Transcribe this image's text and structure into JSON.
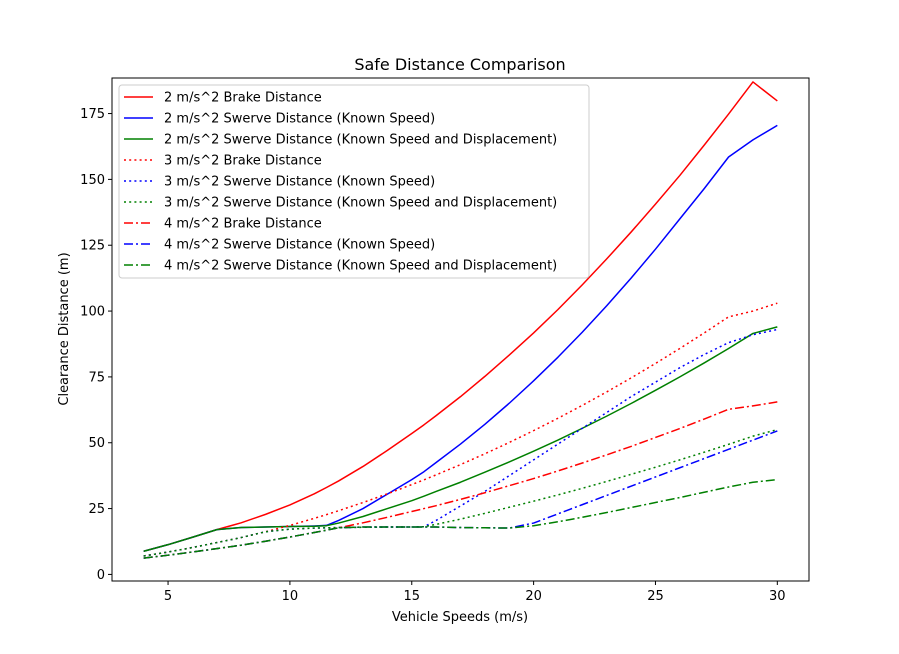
{
  "chart_data": {
    "type": "line",
    "title": "Safe Distance Comparison",
    "xlabel": "Vehicle Speeds (m/s)",
    "ylabel": "Clearance Distance (m)",
    "xlim": [
      2.7,
      31.3
    ],
    "ylim": [
      -2.5,
      188.5
    ],
    "x_ticks": [
      5,
      10,
      15,
      20,
      25,
      30
    ],
    "y_ticks": [
      0,
      25,
      50,
      75,
      100,
      125,
      150,
      175
    ],
    "grid": false,
    "legend_position": "top-left",
    "x": [
      4,
      5,
      6,
      7,
      7.7,
      8,
      9,
      10,
      11,
      11.5,
      12,
      13,
      14,
      15,
      15.5,
      16,
      17,
      18,
      19,
      20,
      21,
      22,
      23,
      24,
      25,
      26,
      27,
      28,
      29,
      30
    ],
    "series": [
      {
        "name": "2 m/s^2 Brake Distance",
        "color": "#ff0000",
        "style": "solid",
        "values": [
          8.8,
          11.3,
          14.1,
          17.0,
          18.8,
          19.6,
          22.8,
          26.4,
          30.6,
          33.0,
          35.5,
          41.0,
          47.1,
          53.5,
          56.8,
          60.3,
          67.5,
          75.2,
          83.3,
          91.7,
          100.6,
          110.0,
          119.8,
          130.0,
          140.6,
          151.5,
          163.0,
          174.8,
          187.0,
          179.8
        ]
      },
      {
        "name": "2 m/s^2 Swerve Distance (Known Speed)",
        "color": "#0000ff",
        "style": "solid",
        "values": [
          8.8,
          11.3,
          14.1,
          17.0,
          17.6,
          17.8,
          18.0,
          18.2,
          18.4,
          18.6,
          20.5,
          25.0,
          30.5,
          36.0,
          39.0,
          42.5,
          49.5,
          57.0,
          65.0,
          73.5,
          82.5,
          92.0,
          102.0,
          112.5,
          123.5,
          135.0,
          146.5,
          158.5,
          165.0,
          170.5
        ]
      },
      {
        "name": "2 m/s^2 Swerve Distance (Known Speed and Displacement)",
        "color": "#008000",
        "style": "solid",
        "values": [
          8.8,
          11.3,
          14.1,
          17.0,
          17.6,
          17.8,
          18.0,
          18.2,
          18.3,
          18.5,
          19.5,
          22.0,
          25.0,
          28.0,
          29.7,
          31.5,
          35.0,
          38.8,
          42.7,
          46.8,
          51.0,
          55.5,
          60.1,
          64.9,
          69.9,
          75.0,
          80.3,
          85.8,
          91.5,
          94.0
        ]
      },
      {
        "name": "3 m/s^2 Brake Distance",
        "color": "#ff0000",
        "style": "dotted",
        "values": [
          7.0,
          8.5,
          10.2,
          12.1,
          13.4,
          14.0,
          16.2,
          18.6,
          21.3,
          22.7,
          24.2,
          27.3,
          30.6,
          34.1,
          35.9,
          37.8,
          41.7,
          45.8,
          50.1,
          54.6,
          59.3,
          64.2,
          69.3,
          74.6,
          80.1,
          85.8,
          91.7,
          97.8,
          100.0,
          103.0
        ]
      },
      {
        "name": "3 m/s^2 Swerve Distance (Known Speed)",
        "color": "#0000ff",
        "style": "dotted",
        "values": [
          7.0,
          8.5,
          10.2,
          12.1,
          13.4,
          14.0,
          16.2,
          17.2,
          17.6,
          17.7,
          17.8,
          17.9,
          18.0,
          18.0,
          18.1,
          20.5,
          26.0,
          31.5,
          37.5,
          43.5,
          49.5,
          55.5,
          61.5,
          67.5,
          73.0,
          78.5,
          83.5,
          88.0,
          91.0,
          93.0
        ]
      },
      {
        "name": "3 m/s^2 Swerve Distance (Known Speed and Displacement)",
        "color": "#008000",
        "style": "dotted",
        "values": [
          7.0,
          8.5,
          10.2,
          12.1,
          13.4,
          14.0,
          16.2,
          17.2,
          17.6,
          17.7,
          17.8,
          17.9,
          18.0,
          18.0,
          18.1,
          19.0,
          21.0,
          23.2,
          25.5,
          27.8,
          30.2,
          32.7,
          35.3,
          38.0,
          40.7,
          43.5,
          46.4,
          49.4,
          52.5,
          55.0
        ]
      },
      {
        "name": "4 m/s^2 Brake Distance",
        "color": "#ff0000",
        "style": "dashdot",
        "values": [
          6.2,
          7.3,
          8.5,
          9.8,
          10.7,
          11.1,
          12.6,
          14.2,
          15.9,
          16.8,
          17.7,
          19.6,
          21.7,
          23.9,
          25.0,
          26.1,
          28.5,
          31.0,
          33.7,
          36.4,
          39.3,
          42.3,
          45.4,
          48.6,
          52.0,
          55.4,
          59.0,
          62.7,
          64.0,
          65.5
        ]
      },
      {
        "name": "4 m/s^2 Swerve Distance (Known Speed)",
        "color": "#0000ff",
        "style": "dashdot",
        "values": [
          6.2,
          7.3,
          8.5,
          9.8,
          10.7,
          11.1,
          12.6,
          14.2,
          15.9,
          16.8,
          17.7,
          18.0,
          18.0,
          18.0,
          18.0,
          18.0,
          17.8,
          17.7,
          17.6,
          19.5,
          23.0,
          26.5,
          30.0,
          33.5,
          37.0,
          40.5,
          44.0,
          47.5,
          51.0,
          54.5
        ]
      },
      {
        "name": "4 m/s^2 Swerve Distance (Known Speed and Displacement)",
        "color": "#008000",
        "style": "dashdot",
        "values": [
          6.2,
          7.3,
          8.5,
          9.8,
          10.7,
          11.1,
          12.6,
          14.2,
          15.9,
          16.8,
          17.7,
          18.0,
          18.0,
          18.0,
          18.0,
          18.0,
          17.8,
          17.7,
          17.6,
          18.5,
          20.0,
          21.7,
          23.5,
          25.4,
          27.3,
          29.2,
          31.2,
          33.2,
          35.0,
          36.0
        ]
      }
    ]
  }
}
